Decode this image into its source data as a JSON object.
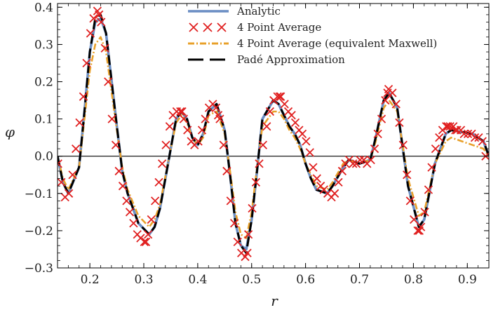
{
  "chart_data": {
    "type": "line",
    "xlabel": "r",
    "ylabel": "φ",
    "xlim": [
      0.14,
      0.94
    ],
    "ylim": [
      -0.3,
      0.41
    ],
    "x_ticks": [
      0.2,
      0.3,
      0.4,
      0.5,
      0.6,
      0.7,
      0.8,
      0.9
    ],
    "x_tick_labels": [
      "0.2",
      "0.3",
      "0.4",
      "0.5",
      "0.6",
      "0.7",
      "0.8",
      "0.9"
    ],
    "y_ticks": [
      -0.3,
      -0.2,
      -0.1,
      0.0,
      0.1,
      0.2,
      0.3,
      0.4
    ],
    "y_tick_labels": [
      "−0.3",
      "−0.2",
      "−0.1",
      "0.0",
      "0.1",
      "0.2",
      "0.3",
      "0.4"
    ],
    "zero_line": true,
    "grid": false,
    "legend_position": "top-right",
    "series": [
      {
        "name": "Analytic",
        "style": "solid",
        "marker": "none",
        "color": "#6b8ec4",
        "x": [
          0.14,
          0.15,
          0.16,
          0.18,
          0.19,
          0.2,
          0.21,
          0.22,
          0.23,
          0.25,
          0.26,
          0.27,
          0.29,
          0.31,
          0.32,
          0.33,
          0.35,
          0.36,
          0.37,
          0.38,
          0.39,
          0.4,
          0.41,
          0.42,
          0.435,
          0.45,
          0.46,
          0.47,
          0.48,
          0.49,
          0.5,
          0.51,
          0.52,
          0.54,
          0.55,
          0.56,
          0.57,
          0.58,
          0.59,
          0.6,
          0.61,
          0.62,
          0.64,
          0.65,
          0.67,
          0.68,
          0.7,
          0.72,
          0.73,
          0.745,
          0.755,
          0.77,
          0.79,
          0.81,
          0.82,
          0.84,
          0.86,
          0.87,
          0.89,
          0.91,
          0.93,
          0.94
        ],
        "y": [
          0.0,
          -0.07,
          -0.1,
          -0.03,
          0.12,
          0.28,
          0.36,
          0.37,
          0.33,
          0.08,
          -0.04,
          -0.1,
          -0.18,
          -0.21,
          -0.19,
          -0.14,
          0.02,
          0.1,
          0.12,
          0.1,
          0.05,
          0.03,
          0.06,
          0.12,
          0.14,
          0.07,
          -0.05,
          -0.18,
          -0.24,
          -0.25,
          -0.17,
          -0.04,
          0.1,
          0.15,
          0.14,
          0.11,
          0.08,
          0.06,
          0.03,
          -0.02,
          -0.06,
          -0.09,
          -0.1,
          -0.08,
          -0.03,
          -0.01,
          -0.02,
          -0.01,
          0.05,
          0.15,
          0.17,
          0.13,
          -0.08,
          -0.19,
          -0.17,
          -0.02,
          0.06,
          0.07,
          0.065,
          0.06,
          0.04,
          0.0
        ]
      },
      {
        "name": "4 Point Average",
        "style": "none",
        "marker": "x",
        "color": "#e02020",
        "x": [
          0.141,
          0.147,
          0.154,
          0.161,
          0.168,
          0.174,
          0.181,
          0.188,
          0.194,
          0.201,
          0.207,
          0.214,
          0.217,
          0.221,
          0.228,
          0.234,
          0.241,
          0.248,
          0.254,
          0.261,
          0.268,
          0.274,
          0.281,
          0.288,
          0.294,
          0.301,
          0.304,
          0.308,
          0.314,
          0.321,
          0.328,
          0.334,
          0.341,
          0.348,
          0.354,
          0.361,
          0.368,
          0.371,
          0.374,
          0.381,
          0.388,
          0.394,
          0.401,
          0.408,
          0.414,
          0.421,
          0.428,
          0.434,
          0.438,
          0.441,
          0.448,
          0.454,
          0.461,
          0.468,
          0.474,
          0.481,
          0.488,
          0.492,
          0.494,
          0.501,
          0.508,
          0.514,
          0.521,
          0.528,
          0.534,
          0.541,
          0.548,
          0.552,
          0.554,
          0.561,
          0.568,
          0.574,
          0.581,
          0.588,
          0.594,
          0.601,
          0.608,
          0.614,
          0.621,
          0.628,
          0.634,
          0.641,
          0.648,
          0.654,
          0.661,
          0.668,
          0.674,
          0.681,
          0.688,
          0.694,
          0.701,
          0.708,
          0.714,
          0.721,
          0.728,
          0.734,
          0.741,
          0.748,
          0.752,
          0.754,
          0.761,
          0.768,
          0.774,
          0.781,
          0.788,
          0.794,
          0.801,
          0.808,
          0.811,
          0.814,
          0.821,
          0.828,
          0.834,
          0.841,
          0.848,
          0.854,
          0.861,
          0.864,
          0.868,
          0.874,
          0.878,
          0.881,
          0.888,
          0.894,
          0.901,
          0.908,
          0.914,
          0.921,
          0.928,
          0.934
        ],
        "y": [
          -0.02,
          -0.07,
          -0.11,
          -0.1,
          -0.05,
          0.02,
          0.09,
          0.16,
          0.25,
          0.33,
          0.37,
          0.39,
          0.38,
          0.36,
          0.29,
          0.2,
          0.1,
          0.03,
          -0.04,
          -0.08,
          -0.12,
          -0.15,
          -0.18,
          -0.21,
          -0.22,
          -0.23,
          -0.23,
          -0.21,
          -0.17,
          -0.12,
          -0.07,
          -0.02,
          0.03,
          0.08,
          0.11,
          0.12,
          0.12,
          0.12,
          0.1,
          0.07,
          0.04,
          0.03,
          0.04,
          0.07,
          0.1,
          0.13,
          0.14,
          0.13,
          0.11,
          0.1,
          0.03,
          -0.04,
          -0.12,
          -0.18,
          -0.23,
          -0.26,
          -0.27,
          -0.26,
          -0.21,
          -0.14,
          -0.07,
          -0.02,
          0.03,
          0.08,
          0.12,
          0.15,
          0.16,
          0.16,
          0.16,
          0.14,
          0.12,
          0.11,
          0.09,
          0.07,
          0.06,
          0.04,
          0.01,
          -0.03,
          -0.06,
          -0.08,
          -0.09,
          -0.1,
          -0.11,
          -0.1,
          -0.07,
          -0.04,
          -0.02,
          -0.01,
          -0.02,
          -0.02,
          -0.01,
          -0.01,
          -0.02,
          -0.01,
          0.02,
          0.06,
          0.1,
          0.15,
          0.17,
          0.18,
          0.17,
          0.14,
          0.09,
          0.03,
          -0.05,
          -0.12,
          -0.17,
          -0.2,
          -0.2,
          -0.19,
          -0.15,
          -0.09,
          -0.03,
          0.02,
          0.05,
          0.07,
          0.08,
          0.08,
          0.08,
          0.08,
          0.07,
          0.07,
          0.07,
          0.06,
          0.06,
          0.06,
          0.05,
          0.05,
          0.04,
          0.0
        ]
      },
      {
        "name": "4 Point Average (equivalent Maxwell)",
        "style": "dash-dot",
        "marker": "none",
        "color": "#e8a02a",
        "x": [
          0.14,
          0.15,
          0.16,
          0.18,
          0.19,
          0.2,
          0.21,
          0.22,
          0.23,
          0.25,
          0.26,
          0.27,
          0.29,
          0.31,
          0.32,
          0.33,
          0.35,
          0.36,
          0.37,
          0.38,
          0.39,
          0.4,
          0.41,
          0.42,
          0.435,
          0.45,
          0.46,
          0.47,
          0.48,
          0.49,
          0.5,
          0.51,
          0.52,
          0.54,
          0.55,
          0.56,
          0.57,
          0.58,
          0.59,
          0.6,
          0.61,
          0.62,
          0.64,
          0.65,
          0.67,
          0.68,
          0.7,
          0.72,
          0.73,
          0.745,
          0.755,
          0.77,
          0.79,
          0.81,
          0.82,
          0.84,
          0.86,
          0.87,
          0.89,
          0.91,
          0.93,
          0.94
        ],
        "y": [
          0.0,
          -0.06,
          -0.09,
          -0.03,
          0.1,
          0.23,
          0.3,
          0.32,
          0.28,
          0.07,
          -0.03,
          -0.09,
          -0.16,
          -0.19,
          -0.17,
          -0.13,
          0.02,
          0.09,
          0.11,
          0.09,
          0.05,
          0.03,
          0.05,
          0.11,
          0.12,
          0.06,
          -0.04,
          -0.15,
          -0.21,
          -0.22,
          -0.15,
          -0.03,
          0.08,
          0.12,
          0.12,
          0.1,
          0.07,
          0.05,
          0.02,
          -0.02,
          -0.05,
          -0.08,
          -0.09,
          -0.07,
          -0.02,
          -0.01,
          -0.02,
          -0.01,
          0.04,
          0.13,
          0.15,
          0.12,
          -0.06,
          -0.16,
          -0.15,
          -0.02,
          0.04,
          0.05,
          0.04,
          0.03,
          0.02,
          0.0
        ]
      },
      {
        "name": "Padé Approximation",
        "style": "long-dash",
        "marker": "none",
        "color": "#000000",
        "x": [
          0.14,
          0.15,
          0.16,
          0.18,
          0.19,
          0.2,
          0.21,
          0.22,
          0.23,
          0.25,
          0.26,
          0.27,
          0.29,
          0.31,
          0.32,
          0.33,
          0.35,
          0.36,
          0.37,
          0.38,
          0.39,
          0.4,
          0.41,
          0.42,
          0.435,
          0.45,
          0.46,
          0.47,
          0.48,
          0.49,
          0.5,
          0.51,
          0.52,
          0.54,
          0.55,
          0.56,
          0.57,
          0.58,
          0.59,
          0.6,
          0.61,
          0.62,
          0.64,
          0.65,
          0.67,
          0.68,
          0.7,
          0.72,
          0.73,
          0.745,
          0.755,
          0.77,
          0.79,
          0.81,
          0.82,
          0.84,
          0.86,
          0.87,
          0.89,
          0.91,
          0.93,
          0.94
        ],
        "y": [
          0.0,
          -0.07,
          -0.1,
          -0.03,
          0.12,
          0.28,
          0.37,
          0.38,
          0.33,
          0.08,
          -0.04,
          -0.1,
          -0.18,
          -0.21,
          -0.19,
          -0.14,
          0.02,
          0.1,
          0.12,
          0.1,
          0.05,
          0.03,
          0.06,
          0.12,
          0.14,
          0.07,
          -0.05,
          -0.18,
          -0.24,
          -0.26,
          -0.17,
          -0.04,
          0.1,
          0.15,
          0.14,
          0.11,
          0.08,
          0.06,
          0.03,
          -0.02,
          -0.06,
          -0.09,
          -0.1,
          -0.08,
          -0.03,
          -0.01,
          -0.02,
          -0.01,
          0.05,
          0.15,
          0.17,
          0.13,
          -0.08,
          -0.19,
          -0.17,
          -0.02,
          0.06,
          0.07,
          0.065,
          0.06,
          0.04,
          0.0
        ]
      }
    ]
  }
}
